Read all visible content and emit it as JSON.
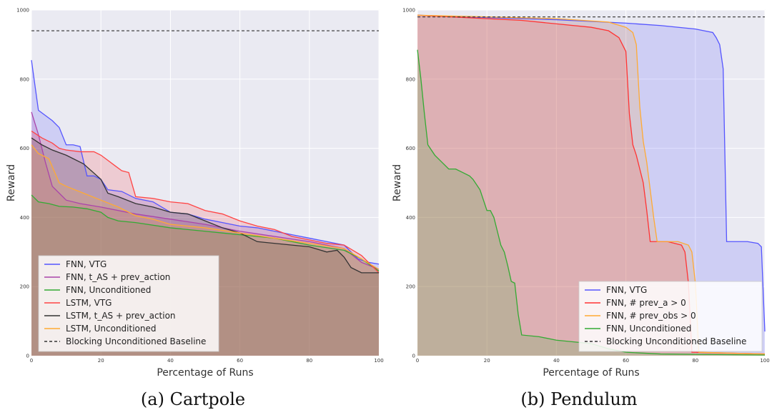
{
  "chart_data": [
    {
      "type": "area",
      "caption": "(a) Cartpole",
      "xlabel": "Percentage of Runs",
      "ylabel": "Reward",
      "xlim": [
        0,
        100
      ],
      "ylim": [
        0,
        1000
      ],
      "xticks": [
        "0",
        "20",
        "40",
        "60",
        "80",
        "100"
      ],
      "yticks": [
        "0",
        "200",
        "400",
        "600",
        "800",
        "1000"
      ],
      "grid": true,
      "legend_position": "lower-left",
      "baseline": {
        "name": "Blocking Unconditioned Baseline",
        "value": 940,
        "color": "#333333"
      },
      "series": [
        {
          "name": "FNN, VTG",
          "color": "#5555ff",
          "points": [
            [
              0,
              855
            ],
            [
              2,
              710
            ],
            [
              4,
              695
            ],
            [
              6,
              680
            ],
            [
              8,
              660
            ],
            [
              10,
              610
            ],
            [
              12,
              610
            ],
            [
              14,
              605
            ],
            [
              16,
              520
            ],
            [
              18,
              520
            ],
            [
              20,
              510
            ],
            [
              22,
              480
            ],
            [
              26,
              475
            ],
            [
              30,
              455
            ],
            [
              35,
              445
            ],
            [
              40,
              415
            ],
            [
              45,
              410
            ],
            [
              50,
              395
            ],
            [
              55,
              385
            ],
            [
              60,
              375
            ],
            [
              65,
              370
            ],
            [
              70,
              360
            ],
            [
              75,
              350
            ],
            [
              80,
              340
            ],
            [
              85,
              330
            ],
            [
              90,
              320
            ],
            [
              94,
              280
            ],
            [
              97,
              270
            ],
            [
              100,
              265
            ]
          ]
        },
        {
          "name": "FNN, t_AS + prev_action",
          "color": "#aa44aa",
          "points": [
            [
              0,
              705
            ],
            [
              2,
              640
            ],
            [
              4,
              560
            ],
            [
              6,
              490
            ],
            [
              8,
              470
            ],
            [
              10,
              450
            ],
            [
              14,
              440
            ],
            [
              20,
              430
            ],
            [
              30,
              410
            ],
            [
              40,
              395
            ],
            [
              50,
              380
            ],
            [
              60,
              360
            ],
            [
              70,
              345
            ],
            [
              80,
              330
            ],
            [
              90,
              310
            ],
            [
              95,
              270
            ],
            [
              100,
              250
            ]
          ]
        },
        {
          "name": "FNN, Unconditioned",
          "color": "#33aa33",
          "points": [
            [
              0,
              465
            ],
            [
              2,
              445
            ],
            [
              5,
              440
            ],
            [
              8,
              432
            ],
            [
              12,
              430
            ],
            [
              16,
              425
            ],
            [
              20,
              415
            ],
            [
              22,
              400
            ],
            [
              25,
              390
            ],
            [
              30,
              385
            ],
            [
              40,
              370
            ],
            [
              50,
              360
            ],
            [
              55,
              355
            ],
            [
              60,
              350
            ],
            [
              70,
              340
            ],
            [
              80,
              320
            ],
            [
              90,
              305
            ],
            [
              95,
              280
            ],
            [
              100,
              245
            ]
          ]
        },
        {
          "name": "LSTM, VTG",
          "color": "#ff4444",
          "points": [
            [
              0,
              650
            ],
            [
              3,
              630
            ],
            [
              6,
              615
            ],
            [
              8,
              600
            ],
            [
              10,
              595
            ],
            [
              14,
              590
            ],
            [
              18,
              590
            ],
            [
              20,
              580
            ],
            [
              22,
              565
            ],
            [
              24,
              550
            ],
            [
              26,
              535
            ],
            [
              28,
              530
            ],
            [
              30,
              460
            ],
            [
              35,
              455
            ],
            [
              40,
              445
            ],
            [
              45,
              440
            ],
            [
              50,
              420
            ],
            [
              55,
              410
            ],
            [
              60,
              390
            ],
            [
              65,
              375
            ],
            [
              70,
              365
            ],
            [
              75,
              345
            ],
            [
              80,
              335
            ],
            [
              85,
              325
            ],
            [
              90,
              320
            ],
            [
              95,
              290
            ],
            [
              100,
              240
            ]
          ]
        },
        {
          "name": "LSTM, t_AS + prev_action",
          "color": "#333333",
          "points": [
            [
              0,
              630
            ],
            [
              3,
              610
            ],
            [
              6,
              595
            ],
            [
              10,
              580
            ],
            [
              15,
              555
            ],
            [
              20,
              510
            ],
            [
              22,
              470
            ],
            [
              25,
              460
            ],
            [
              30,
              440
            ],
            [
              35,
              430
            ],
            [
              40,
              415
            ],
            [
              45,
              410
            ],
            [
              50,
              390
            ],
            [
              55,
              370
            ],
            [
              60,
              355
            ],
            [
              65,
              330
            ],
            [
              75,
              320
            ],
            [
              80,
              315
            ],
            [
              85,
              300
            ],
            [
              88,
              305
            ],
            [
              90,
              285
            ],
            [
              92,
              255
            ],
            [
              95,
              240
            ],
            [
              100,
              240
            ]
          ]
        },
        {
          "name": "LSTM, Unconditioned",
          "color": "#ffaa33",
          "points": [
            [
              0,
              610
            ],
            [
              2,
              585
            ],
            [
              5,
              570
            ],
            [
              8,
              500
            ],
            [
              10,
              490
            ],
            [
              15,
              470
            ],
            [
              20,
              450
            ],
            [
              25,
              430
            ],
            [
              30,
              405
            ],
            [
              35,
              395
            ],
            [
              40,
              380
            ],
            [
              50,
              370
            ],
            [
              60,
              355
            ],
            [
              70,
              340
            ],
            [
              80,
              325
            ],
            [
              90,
              310
            ],
            [
              95,
              280
            ],
            [
              100,
              250
            ]
          ]
        }
      ]
    },
    {
      "type": "area",
      "caption": "(b) Pendulum",
      "xlabel": "Percentage of Runs",
      "ylabel": "Reward",
      "xlim": [
        0,
        100
      ],
      "ylim": [
        0,
        1000
      ],
      "xticks": [
        "0",
        "20",
        "40",
        "60",
        "80",
        "100"
      ],
      "yticks": [
        "0",
        "200",
        "400",
        "600",
        "800",
        "1000"
      ],
      "grid": true,
      "legend_position": "lower-right",
      "baseline": {
        "name": "Blocking Unconditioned Baseline",
        "value": 980,
        "color": "#333333"
      },
      "series": [
        {
          "name": "FNN, VTG",
          "color": "#5555ff",
          "points": [
            [
              0,
              985
            ],
            [
              20,
              978
            ],
            [
              40,
              972
            ],
            [
              60,
              962
            ],
            [
              70,
              955
            ],
            [
              80,
              945
            ],
            [
              85,
              935
            ],
            [
              86,
              920
            ],
            [
              87,
              900
            ],
            [
              88,
              830
            ],
            [
              89,
              330
            ],
            [
              95,
              330
            ],
            [
              98,
              325
            ],
            [
              99,
              315
            ],
            [
              100,
              70
            ]
          ]
        },
        {
          "name": "FNN, # prev_a > 0",
          "color": "#ff3333",
          "points": [
            [
              0,
              985
            ],
            [
              10,
              980
            ],
            [
              20,
              975
            ],
            [
              30,
              970
            ],
            [
              40,
              960
            ],
            [
              50,
              950
            ],
            [
              55,
              940
            ],
            [
              58,
              920
            ],
            [
              60,
              880
            ],
            [
              61,
              700
            ],
            [
              62,
              610
            ],
            [
              63,
              580
            ],
            [
              64,
              540
            ],
            [
              65,
              500
            ],
            [
              66,
              420
            ],
            [
              67,
              330
            ],
            [
              72,
              330
            ],
            [
              76,
              320
            ],
            [
              77,
              300
            ],
            [
              78,
              210
            ],
            [
              79,
              10
            ],
            [
              100,
              5
            ]
          ]
        },
        {
          "name": "FNN, # prev_obs > 0",
          "color": "#ffaa33",
          "points": [
            [
              0,
              985
            ],
            [
              20,
              980
            ],
            [
              40,
              975
            ],
            [
              55,
              965
            ],
            [
              60,
              950
            ],
            [
              62,
              935
            ],
            [
              63,
              900
            ],
            [
              64,
              720
            ],
            [
              65,
              620
            ],
            [
              66,
              560
            ],
            [
              67,
              480
            ],
            [
              68,
              400
            ],
            [
              69,
              330
            ],
            [
              75,
              330
            ],
            [
              78,
              320
            ],
            [
              79,
              300
            ],
            [
              80,
              210
            ],
            [
              81,
              10
            ],
            [
              100,
              5
            ]
          ]
        },
        {
          "name": "FNN, Unconditioned",
          "color": "#33aa33",
          "points": [
            [
              0,
              885
            ],
            [
              1,
              800
            ],
            [
              2,
              700
            ],
            [
              3,
              610
            ],
            [
              5,
              580
            ],
            [
              7,
              560
            ],
            [
              9,
              540
            ],
            [
              11,
              540
            ],
            [
              13,
              530
            ],
            [
              15,
              520
            ],
            [
              16,
              510
            ],
            [
              18,
              480
            ],
            [
              19,
              450
            ],
            [
              20,
              420
            ],
            [
              21,
              420
            ],
            [
              22,
              400
            ],
            [
              23,
              360
            ],
            [
              24,
              320
            ],
            [
              25,
              300
            ],
            [
              26,
              260
            ],
            [
              27,
              215
            ],
            [
              28,
              210
            ],
            [
              29,
              120
            ],
            [
              30,
              60
            ],
            [
              35,
              55
            ],
            [
              40,
              45
            ],
            [
              45,
              40
            ],
            [
              50,
              35
            ],
            [
              55,
              20
            ],
            [
              60,
              10
            ],
            [
              70,
              5
            ],
            [
              100,
              2
            ]
          ]
        }
      ]
    }
  ]
}
